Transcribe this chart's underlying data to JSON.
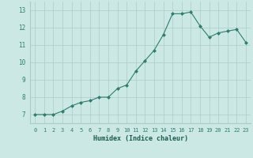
{
  "xlabel": "Humidex (Indice chaleur)",
  "ylabel": "",
  "x": [
    0,
    1,
    2,
    3,
    4,
    5,
    6,
    7,
    8,
    9,
    10,
    11,
    12,
    13,
    14,
    15,
    16,
    17,
    18,
    19,
    20,
    21,
    22,
    23
  ],
  "y": [
    7.0,
    7.0,
    7.0,
    7.2,
    7.5,
    7.7,
    7.8,
    8.0,
    8.0,
    8.5,
    8.7,
    9.5,
    10.1,
    10.7,
    11.6,
    12.8,
    12.8,
    12.9,
    12.1,
    11.45,
    11.7,
    11.8,
    11.9,
    11.15
  ],
  "ylim": [
    6.5,
    13.5
  ],
  "yticks": [
    7,
    8,
    9,
    10,
    11,
    12,
    13
  ],
  "xticks": [
    0,
    1,
    2,
    3,
    4,
    5,
    6,
    7,
    8,
    9,
    10,
    11,
    12,
    13,
    14,
    15,
    16,
    17,
    18,
    19,
    20,
    21,
    22,
    23
  ],
  "line_color": "#2e7d6e",
  "marker_color": "#2e7d6e",
  "bg_color": "#cce8e5",
  "grid_color": "#aaccc8",
  "tick_color": "#2e7d6e",
  "xlabel_color": "#1a5c50"
}
